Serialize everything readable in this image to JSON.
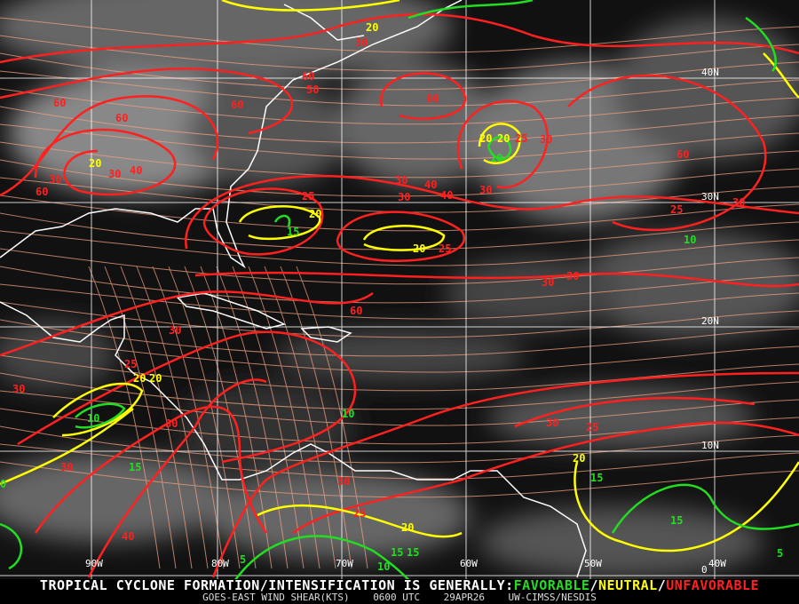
{
  "product": {
    "headline_prefix": "TROPICAL CYCLONE FORMATION/INTENSIFICATION IS GENERALLY:",
    "favorable": "FAVORABLE",
    "neutral": "NEUTRAL",
    "unfavorable": "UNFAVORABLE",
    "separator": "/",
    "satellite_product": "GOES-EAST WIND SHEAR(KTS)",
    "time": "0600 UTC",
    "date": "29APR26",
    "source": "UW-CIMSS/NESDIS"
  },
  "colors": {
    "favorable": "#22dd22",
    "neutral": "#ffff00",
    "unfavorable": "#ff2020",
    "streamlines": "#f0a080",
    "coastline": "#ffffff",
    "grid": "#ffffff"
  },
  "grid": {
    "latitudes": [
      "40N",
      "30N",
      "20N",
      "10N",
      "0"
    ],
    "longitudes": [
      "90W",
      "80W",
      "70W",
      "60W",
      "50W",
      "40W"
    ]
  },
  "contour_labels": [
    "30",
    "20",
    "60",
    "60",
    "50",
    "60",
    "30",
    "60",
    "20",
    "30",
    "40",
    "60",
    "20",
    "10",
    "20",
    "30",
    "25",
    "15",
    "20",
    "25",
    "30",
    "30",
    "40",
    "60",
    "30",
    "20",
    "30",
    "25",
    "10",
    "30",
    "30",
    "25",
    "25",
    "20",
    "15",
    "15",
    "10",
    "5",
    "20",
    "30",
    "10",
    "15",
    "20",
    "25",
    "15",
    "5",
    "40",
    "30",
    "60",
    "30",
    "30",
    "60",
    "30",
    "25",
    "40",
    "30",
    "10",
    "0",
    "15",
    "20"
  ]
}
